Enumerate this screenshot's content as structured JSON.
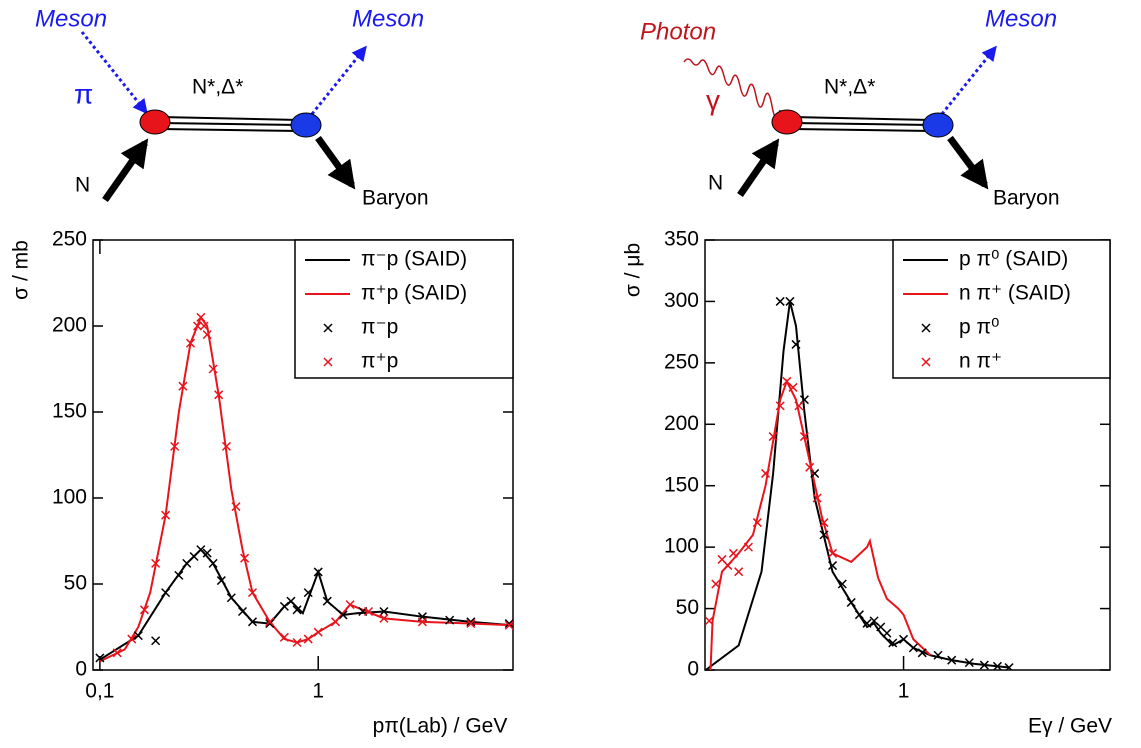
{
  "diagrams": [
    {
      "incoming": "Meson",
      "incoming_symbol": "π",
      "resonance": "N*,Δ*",
      "target": "N",
      "outgoing": "Meson",
      "recoil": "Baryon"
    },
    {
      "incoming": "Photon",
      "incoming_symbol": "γ",
      "resonance": "N*,Δ*",
      "target": "N",
      "outgoing": "Meson",
      "recoil": "Baryon"
    }
  ],
  "chart_data": [
    {
      "type": "line",
      "xlabel": "pπ(Lab) / GeV",
      "ylabel": "σ / mb",
      "xscale": "log",
      "xlim": [
        0.093,
        7.8
      ],
      "ylim": [
        0,
        250
      ],
      "xticks": [
        {
          "value": 0.1,
          "label": "0,1"
        },
        1
      ],
      "yticks": [
        0,
        50,
        100,
        150,
        200,
        250
      ],
      "legend": "upper right",
      "series": [
        {
          "name": "π⁻p (SAID)",
          "color": "#000000",
          "style": "line",
          "x": [
            0.1,
            0.15,
            0.2,
            0.25,
            0.29,
            0.33,
            0.4,
            0.5,
            0.6,
            0.7,
            0.75,
            0.85,
            1.0,
            1.1,
            1.3,
            1.5,
            2,
            3,
            5,
            7.8
          ],
          "values": [
            6,
            20,
            45,
            62,
            70,
            62,
            42,
            28,
            27,
            37,
            40,
            33,
            57,
            40,
            32,
            33,
            34,
            31,
            28,
            26
          ]
        },
        {
          "name": "π⁺p (SAID)",
          "color": "#e8141c",
          "style": "line",
          "x": [
            0.1,
            0.13,
            0.15,
            0.17,
            0.2,
            0.23,
            0.26,
            0.29,
            0.31,
            0.35,
            0.4,
            0.45,
            0.5,
            0.6,
            0.7,
            0.8,
            0.9,
            1,
            1.2,
            1.4,
            1.6,
            2,
            3,
            5,
            7.8
          ],
          "values": [
            5,
            12,
            25,
            45,
            90,
            150,
            190,
            205,
            200,
            160,
            105,
            70,
            45,
            28,
            18,
            16,
            18,
            22,
            28,
            38,
            35,
            30,
            28,
            27,
            26
          ]
        },
        {
          "name": "π⁻p",
          "color": "#000000",
          "style": "marker",
          "x": [
            0.1,
            0.15,
            0.18,
            0.2,
            0.23,
            0.25,
            0.27,
            0.29,
            0.31,
            0.33,
            0.36,
            0.4,
            0.45,
            0.5,
            0.6,
            0.7,
            0.75,
            0.8,
            0.9,
            1.0,
            1.1,
            1.3,
            1.6,
            2,
            3,
            4,
            5,
            7.5
          ],
          "values": [
            7,
            20,
            17,
            45,
            55,
            62,
            66,
            70,
            68,
            62,
            52,
            42,
            34,
            28,
            27,
            37,
            40,
            35,
            45,
            57,
            40,
            32,
            34,
            34,
            31,
            29,
            28,
            27
          ]
        },
        {
          "name": "π⁺p",
          "color": "#e8141c",
          "style": "marker",
          "x": [
            0.12,
            0.14,
            0.16,
            0.18,
            0.2,
            0.22,
            0.24,
            0.26,
            0.28,
            0.29,
            0.3,
            0.31,
            0.33,
            0.35,
            0.38,
            0.42,
            0.46,
            0.5,
            0.6,
            0.7,
            0.8,
            0.9,
            1.0,
            1.2,
            1.4,
            1.7,
            2,
            3,
            5,
            7.5
          ],
          "values": [
            10,
            18,
            35,
            62,
            90,
            130,
            165,
            190,
            200,
            205,
            200,
            195,
            175,
            160,
            130,
            95,
            65,
            45,
            28,
            19,
            16,
            18,
            22,
            28,
            38,
            34,
            30,
            28,
            27,
            26
          ]
        }
      ]
    },
    {
      "type": "line",
      "xlabel": "Eγ / GeV",
      "ylabel": "σ / μb",
      "xscale": "log",
      "xlim": [
        0.144,
        7.5
      ],
      "ylim": [
        0,
        350
      ],
      "xticks": [
        1
      ],
      "yticks": [
        0,
        50,
        100,
        150,
        200,
        250,
        300,
        350
      ],
      "legend": "upper right",
      "series": [
        {
          "name": "p π⁰ (SAID)",
          "color": "#000000",
          "style": "line",
          "x": [
            0.145,
            0.2,
            0.25,
            0.28,
            0.31,
            0.33,
            0.35,
            0.38,
            0.42,
            0.5,
            0.6,
            0.7,
            0.75,
            0.8,
            0.9,
            1.0,
            1.1,
            1.3,
            1.6,
            2,
            2.8
          ],
          "values": [
            0,
            20,
            80,
            160,
            260,
            300,
            280,
            210,
            140,
            80,
            55,
            35,
            38,
            30,
            20,
            25,
            18,
            12,
            8,
            5,
            2
          ]
        },
        {
          "name": "n π⁺ (SAID)",
          "color": "#e8141c",
          "style": "line",
          "x": [
            0.152,
            0.155,
            0.17,
            0.2,
            0.23,
            0.26,
            0.3,
            0.32,
            0.35,
            0.4,
            0.45,
            0.5,
            0.6,
            0.7,
            0.72,
            0.78,
            0.85,
            0.95,
            1,
            1.1,
            1.3
          ],
          "values": [
            0,
            40,
            80,
            95,
            110,
            150,
            220,
            235,
            220,
            170,
            125,
            95,
            88,
            100,
            105,
            75,
            58,
            50,
            45,
            25,
            12
          ]
        },
        {
          "name": "p π⁰",
          "color": "#000000",
          "style": "marker",
          "x": [
            0.3,
            0.33,
            0.35,
            0.38,
            0.42,
            0.46,
            0.5,
            0.55,
            0.6,
            0.65,
            0.7,
            0.75,
            0.8,
            0.85,
            0.9,
            1.0,
            1.1,
            1.2,
            1.4,
            1.6,
            1.9,
            2.2,
            2.5,
            2.8
          ],
          "values": [
            300,
            300,
            265,
            220,
            160,
            110,
            85,
            70,
            55,
            45,
            38,
            40,
            35,
            30,
            22,
            25,
            18,
            14,
            12,
            8,
            6,
            4,
            3,
            2
          ]
        },
        {
          "name": "n π⁺",
          "color": "#e8141c",
          "style": "marker",
          "x": [
            0.15,
            0.16,
            0.17,
            0.18,
            0.19,
            0.2,
            0.22,
            0.24,
            0.26,
            0.28,
            0.3,
            0.32,
            0.34,
            0.36,
            0.38,
            0.4,
            0.43,
            0.46,
            0.5
          ],
          "values": [
            40,
            70,
            90,
            85,
            95,
            80,
            100,
            120,
            160,
            190,
            215,
            235,
            230,
            215,
            190,
            165,
            140,
            120,
            95
          ]
        }
      ]
    }
  ]
}
